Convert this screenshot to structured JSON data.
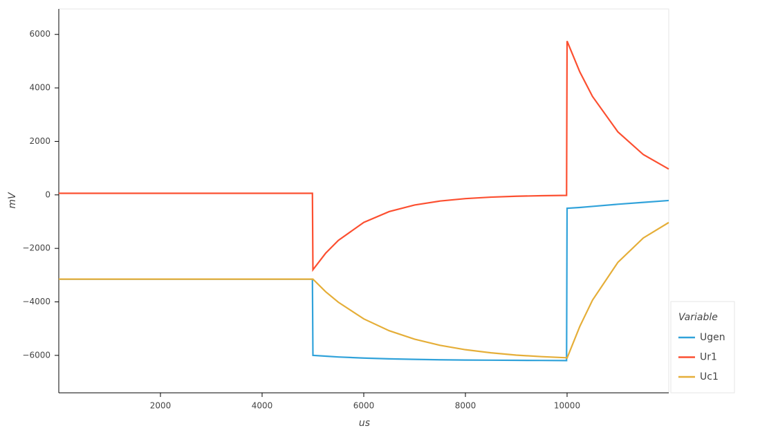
{
  "chart_data": {
    "type": "line",
    "xlabel": "us",
    "ylabel": "mV",
    "legend_title": "Variable",
    "x": [
      0,
      1000,
      2000,
      3000,
      4000,
      4990,
      5000,
      5250,
      5500,
      6000,
      6500,
      7000,
      7500,
      8000,
      8500,
      9000,
      9500,
      9990,
      10000,
      10250,
      10500,
      11000,
      11500,
      12000
    ],
    "series": [
      {
        "name": "Ugen",
        "color": "#30a2da",
        "values": [
          -3150,
          -3150,
          -3150,
          -3150,
          -3150,
          -3150,
          -6000,
          -6030,
          -6060,
          -6100,
          -6130,
          -6150,
          -6165,
          -6175,
          -6180,
          -6185,
          -6190,
          -6195,
          -500,
          -470,
          -430,
          -350,
          -280,
          -210
        ]
      },
      {
        "name": "Ur1",
        "color": "#fc4f30",
        "values": [
          60,
          60,
          60,
          60,
          60,
          60,
          -2800,
          -2181,
          -1700,
          -1030,
          -624,
          -378,
          -230,
          -140,
          -84,
          -50,
          -31,
          -19,
          5750,
          4600,
          3680,
          2355,
          1507,
          966
        ]
      },
      {
        "name": "Uc1",
        "color": "#e5ae38",
        "values": [
          -3150,
          -3150,
          -3150,
          -3150,
          -3150,
          -3150,
          -3150,
          -3620,
          -4013,
          -4635,
          -5078,
          -5395,
          -5624,
          -5788,
          -5904,
          -5990,
          -6048,
          -6090,
          -6100,
          -4920,
          -3936,
          -2521,
          -1611,
          -1033
        ]
      }
    ],
    "xlim": [
      0,
      12000
    ],
    "xticks": [
      2000,
      4000,
      6000,
      8000,
      10000
    ],
    "ylim": [
      -7400,
      6950
    ],
    "yticks": [
      {
        "value": -6000,
        "label": "−6000"
      },
      {
        "value": -4000,
        "label": "−4000"
      },
      {
        "value": -2000,
        "label": "−2000"
      },
      0,
      2000,
      4000,
      6000
    ]
  }
}
